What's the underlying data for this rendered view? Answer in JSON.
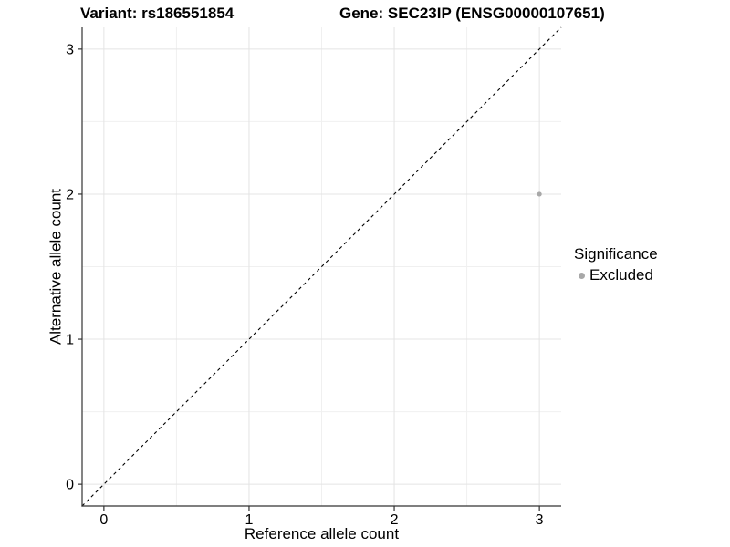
{
  "chart_data": {
    "type": "scatter",
    "titles": {
      "variant": "Variant: rs186551854",
      "gene": "Gene: SEC23IP (ENSG00000107651)"
    },
    "xlabel": "Reference allele count",
    "ylabel": "Alternative allele count",
    "x_ticks": [
      0,
      1,
      2,
      3
    ],
    "y_ticks": [
      0,
      1,
      2,
      3
    ],
    "xlim": [
      -0.15,
      3.15
    ],
    "ylim": [
      -0.15,
      3.15
    ],
    "grid": "major+minor",
    "series": [
      {
        "name": "Excluded",
        "color": "#a8a8a8",
        "points": [
          {
            "x": 3,
            "y": 2
          }
        ]
      }
    ],
    "reference_line": {
      "style": "dashed",
      "equation": "y = x",
      "color": "#000000"
    },
    "legend": {
      "position": "right",
      "title": "Significance",
      "entries": [
        {
          "label": "Excluded",
          "color": "#a8a8a8"
        }
      ]
    },
    "colors": {
      "background": "#ffffff",
      "major_grid": "#e4e4e4",
      "minor_grid": "#f0f0f0",
      "axis_line": "#333333",
      "text": "#000000"
    }
  }
}
